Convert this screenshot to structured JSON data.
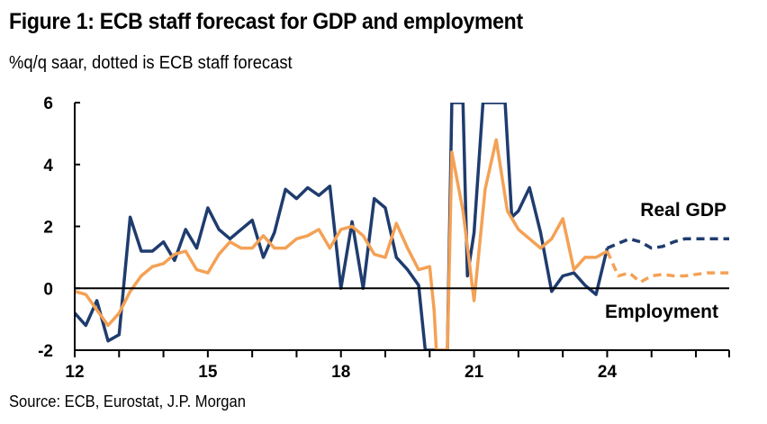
{
  "header": {
    "title": "Figure 1: ECB staff forecast for GDP and employment",
    "subtitle": "%q/q saar, dotted is ECB staff forecast"
  },
  "footer": {
    "source": "Source: ECB, Eurostat, J.P. Morgan"
  },
  "chart_data": {
    "type": "line",
    "title": "Figure 1: ECB staff forecast for GDP and employment",
    "subtitle": "%q/q saar, dotted is ECB staff forecast",
    "xlabel": "",
    "ylabel": "",
    "x_ticks": [
      {
        "x": 2012,
        "label": "12"
      },
      {
        "x": 2015,
        "label": "15"
      },
      {
        "x": 2018,
        "label": "18"
      },
      {
        "x": 2021,
        "label": "21"
      },
      {
        "x": 2024,
        "label": "24"
      }
    ],
    "y_ticks": [
      -2,
      0,
      2,
      4,
      6
    ],
    "xlim": [
      2012,
      2026.75
    ],
    "ylim": [
      -2,
      6
    ],
    "colors": {
      "gdp": "#1F3C6E",
      "employment": "#F4A155",
      "axis": "#000000"
    },
    "series": [
      {
        "name": "Real GDP",
        "label_position": "right-above",
        "style": "solid-actual-dashed-forecast",
        "actual": [
          [
            2012.0,
            -0.8
          ],
          [
            2012.25,
            -1.2
          ],
          [
            2012.5,
            -0.4
          ],
          [
            2012.75,
            -1.7
          ],
          [
            2013.0,
            -1.5
          ],
          [
            2013.25,
            2.3
          ],
          [
            2013.5,
            1.2
          ],
          [
            2013.75,
            1.2
          ],
          [
            2014.0,
            1.5
          ],
          [
            2014.25,
            0.9
          ],
          [
            2014.5,
            1.9
          ],
          [
            2014.75,
            1.3
          ],
          [
            2015.0,
            2.6
          ],
          [
            2015.25,
            1.9
          ],
          [
            2015.5,
            1.6
          ],
          [
            2015.75,
            1.9
          ],
          [
            2016.0,
            2.2
          ],
          [
            2016.25,
            1.0
          ],
          [
            2016.5,
            1.8
          ],
          [
            2016.75,
            3.2
          ],
          [
            2017.0,
            2.9
          ],
          [
            2017.25,
            3.25
          ],
          [
            2017.5,
            3.0
          ],
          [
            2017.75,
            3.3
          ],
          [
            2018.0,
            0.0
          ],
          [
            2018.25,
            2.15
          ],
          [
            2018.5,
            0.0
          ],
          [
            2018.75,
            2.9
          ],
          [
            2019.0,
            2.6
          ],
          [
            2019.25,
            1.0
          ],
          [
            2019.5,
            0.6
          ],
          [
            2019.75,
            0.1
          ],
          [
            2019.9,
            -2.0
          ],
          [
            2020.4,
            -2.0
          ],
          [
            2020.5,
            6.0
          ],
          [
            2020.75,
            6.0
          ],
          [
            2020.85,
            0.4
          ],
          [
            2021.0,
            1.8
          ],
          [
            2021.2,
            6.0
          ],
          [
            2021.7,
            6.0
          ],
          [
            2021.85,
            2.3
          ],
          [
            2022.0,
            2.5
          ],
          [
            2022.25,
            3.25
          ],
          [
            2022.5,
            1.8
          ],
          [
            2022.75,
            -0.1
          ],
          [
            2023.0,
            0.4
          ],
          [
            2023.25,
            0.5
          ],
          [
            2023.5,
            0.1
          ],
          [
            2023.75,
            -0.2
          ],
          [
            2024.0,
            1.3
          ]
        ],
        "forecast": [
          [
            2024.0,
            1.3
          ],
          [
            2024.25,
            1.45
          ],
          [
            2024.5,
            1.6
          ],
          [
            2024.75,
            1.5
          ],
          [
            2025.0,
            1.3
          ],
          [
            2025.25,
            1.35
          ],
          [
            2025.5,
            1.5
          ],
          [
            2025.75,
            1.6
          ],
          [
            2026.0,
            1.6
          ],
          [
            2026.25,
            1.6
          ],
          [
            2026.5,
            1.6
          ],
          [
            2026.75,
            1.6
          ]
        ]
      },
      {
        "name": "Employment",
        "label_position": "right-below",
        "style": "solid-actual-dashed-forecast",
        "actual": [
          [
            2012.0,
            -0.1
          ],
          [
            2012.25,
            -0.2
          ],
          [
            2012.5,
            -0.7
          ],
          [
            2012.75,
            -1.2
          ],
          [
            2013.0,
            -0.8
          ],
          [
            2013.25,
            -0.1
          ],
          [
            2013.5,
            0.4
          ],
          [
            2013.75,
            0.7
          ],
          [
            2014.0,
            0.8
          ],
          [
            2014.25,
            1.1
          ],
          [
            2014.5,
            1.2
          ],
          [
            2014.75,
            0.6
          ],
          [
            2015.0,
            0.5
          ],
          [
            2015.25,
            1.1
          ],
          [
            2015.5,
            1.5
          ],
          [
            2015.75,
            1.3
          ],
          [
            2016.0,
            1.3
          ],
          [
            2016.25,
            1.7
          ],
          [
            2016.5,
            1.3
          ],
          [
            2016.75,
            1.3
          ],
          [
            2017.0,
            1.6
          ],
          [
            2017.25,
            1.7
          ],
          [
            2017.5,
            1.9
          ],
          [
            2017.75,
            1.3
          ],
          [
            2018.0,
            1.9
          ],
          [
            2018.25,
            2.0
          ],
          [
            2018.5,
            1.7
          ],
          [
            2018.75,
            1.1
          ],
          [
            2019.0,
            1.0
          ],
          [
            2019.25,
            2.1
          ],
          [
            2019.5,
            1.3
          ],
          [
            2019.75,
            0.6
          ],
          [
            2020.0,
            0.7
          ],
          [
            2020.1,
            -0.7
          ],
          [
            2020.15,
            -2.0
          ],
          [
            2020.4,
            -2.0
          ],
          [
            2020.5,
            4.4
          ],
          [
            2020.75,
            2.5
          ],
          [
            2021.0,
            -0.4
          ],
          [
            2021.25,
            3.2
          ],
          [
            2021.5,
            4.8
          ],
          [
            2021.75,
            2.5
          ],
          [
            2022.0,
            1.9
          ],
          [
            2022.25,
            1.6
          ],
          [
            2022.5,
            1.3
          ],
          [
            2022.75,
            1.6
          ],
          [
            2023.0,
            2.25
          ],
          [
            2023.25,
            0.6
          ],
          [
            2023.5,
            1.0
          ],
          [
            2023.75,
            1.0
          ],
          [
            2024.0,
            1.2
          ]
        ],
        "forecast": [
          [
            2024.0,
            1.2
          ],
          [
            2024.25,
            0.4
          ],
          [
            2024.5,
            0.5
          ],
          [
            2024.75,
            0.2
          ],
          [
            2025.0,
            0.4
          ],
          [
            2025.25,
            0.45
          ],
          [
            2025.5,
            0.4
          ],
          [
            2025.75,
            0.4
          ],
          [
            2026.0,
            0.45
          ],
          [
            2026.25,
            0.5
          ],
          [
            2026.5,
            0.5
          ],
          [
            2026.75,
            0.5
          ]
        ]
      }
    ],
    "zero_line": 0,
    "grid": false
  }
}
